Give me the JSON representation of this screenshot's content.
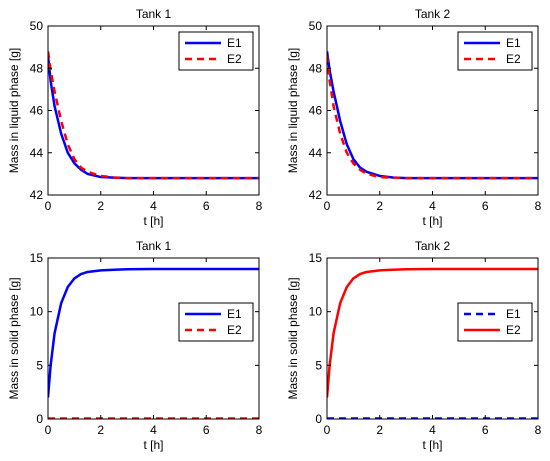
{
  "chart_data": [
    {
      "type": "line",
      "title": "Tank 1",
      "xlabel": "t [h]",
      "ylabel": "Mass in liquid phase [g]",
      "xlim": [
        0,
        8
      ],
      "ylim": [
        42,
        50
      ],
      "xticks": [
        0,
        2,
        4,
        6,
        8
      ],
      "yticks": [
        42,
        44,
        46,
        48,
        50
      ],
      "grid": false,
      "legend_position": "top-right",
      "series": [
        {
          "name": "E1",
          "color": "#0000ff",
          "style": "solid",
          "x": [
            0,
            0.1,
            0.25,
            0.5,
            0.75,
            1,
            1.25,
            1.5,
            2,
            2.5,
            3,
            4,
            5,
            6,
            7,
            8
          ],
          "y": [
            48.6,
            47.4,
            46.2,
            44.9,
            44.0,
            43.5,
            43.2,
            43.0,
            42.85,
            42.82,
            42.8,
            42.8,
            42.8,
            42.8,
            42.8,
            42.8
          ]
        },
        {
          "name": "E2",
          "color": "#ff0000",
          "style": "dashed",
          "x": [
            0,
            0.1,
            0.25,
            0.5,
            0.75,
            1,
            1.25,
            1.5,
            2,
            2.5,
            3,
            4,
            5,
            6,
            7,
            8
          ],
          "y": [
            48.8,
            47.9,
            46.9,
            45.5,
            44.4,
            43.7,
            43.3,
            43.1,
            42.9,
            42.83,
            42.8,
            42.8,
            42.8,
            42.8,
            42.8,
            42.8
          ]
        }
      ]
    },
    {
      "type": "line",
      "title": "Tank 2",
      "xlabel": "t [h]",
      "ylabel": "Mass in liquid phase [g]",
      "xlim": [
        0,
        8
      ],
      "ylim": [
        42,
        50
      ],
      "xticks": [
        0,
        2,
        4,
        6,
        8
      ],
      "yticks": [
        42,
        44,
        46,
        48,
        50
      ],
      "grid": false,
      "legend_position": "top-right",
      "series": [
        {
          "name": "E1",
          "color": "#0000ff",
          "style": "solid",
          "x": [
            0,
            0.1,
            0.25,
            0.5,
            0.75,
            1,
            1.25,
            1.5,
            2,
            2.5,
            3,
            4,
            5,
            6,
            7,
            8
          ],
          "y": [
            48.8,
            47.9,
            46.9,
            45.5,
            44.4,
            43.7,
            43.3,
            43.1,
            42.9,
            42.83,
            42.8,
            42.8,
            42.8,
            42.8,
            42.8,
            42.8
          ]
        },
        {
          "name": "E2",
          "color": "#ff0000",
          "style": "dashed",
          "x": [
            0,
            0.1,
            0.25,
            0.5,
            0.75,
            1,
            1.25,
            1.5,
            2,
            2.5,
            3,
            4,
            5,
            6,
            7,
            8
          ],
          "y": [
            48.6,
            47.4,
            46.2,
            44.9,
            44.0,
            43.5,
            43.2,
            43.0,
            42.85,
            42.82,
            42.8,
            42.8,
            42.8,
            42.8,
            42.8,
            42.8
          ]
        }
      ]
    },
    {
      "type": "line",
      "title": "Tank 1",
      "xlabel": "t [h]",
      "ylabel": "Mass in solid phase [g]",
      "xlim": [
        0,
        8
      ],
      "ylim": [
        0,
        15
      ],
      "xticks": [
        0,
        2,
        4,
        6,
        8
      ],
      "yticks": [
        0,
        5,
        10,
        15
      ],
      "grid": false,
      "legend_position": "right",
      "series": [
        {
          "name": "E1",
          "color": "#0000ff",
          "style": "solid",
          "x": [
            0,
            0.1,
            0.25,
            0.5,
            0.75,
            1,
            1.25,
            1.5,
            2,
            2.5,
            3,
            4,
            5,
            6,
            7,
            8
          ],
          "y": [
            2.0,
            5.0,
            8.0,
            10.8,
            12.3,
            13.1,
            13.5,
            13.7,
            13.85,
            13.9,
            13.95,
            13.97,
            13.98,
            13.98,
            13.98,
            13.98
          ]
        },
        {
          "name": "E2",
          "color": "#ff0000",
          "style": "dashed",
          "x": [
            0,
            8
          ],
          "y": [
            0.05,
            0.05
          ]
        }
      ]
    },
    {
      "type": "line",
      "title": "Tank 2",
      "xlabel": "t [h]",
      "ylabel": "Mass in solid phase [g]",
      "xlim": [
        0,
        8
      ],
      "ylim": [
        0,
        15
      ],
      "xticks": [
        0,
        2,
        4,
        6,
        8
      ],
      "yticks": [
        0,
        5,
        10,
        15
      ],
      "grid": false,
      "legend_position": "right",
      "series": [
        {
          "name": "E1",
          "color": "#0000ff",
          "style": "dashed",
          "x": [
            0,
            8
          ],
          "y": [
            0.05,
            0.05
          ]
        },
        {
          "name": "E2",
          "color": "#ff0000",
          "style": "solid",
          "x": [
            0,
            0.1,
            0.25,
            0.5,
            0.75,
            1,
            1.25,
            1.5,
            2,
            2.5,
            3,
            4,
            5,
            6,
            7,
            8
          ],
          "y": [
            2.0,
            5.0,
            8.0,
            10.8,
            12.3,
            13.1,
            13.5,
            13.7,
            13.85,
            13.9,
            13.95,
            13.97,
            13.98,
            13.98,
            13.98,
            13.98
          ]
        }
      ]
    }
  ]
}
